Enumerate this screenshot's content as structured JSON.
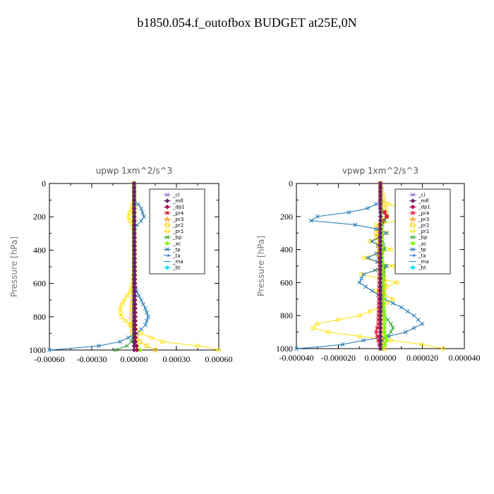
{
  "figure": {
    "title": "b1850.054.f_outofbox  BUDGET at25E,0N"
  },
  "legend_entries": [
    {
      "name": "_cl",
      "color": "#8b6fd6",
      "marker": "x"
    },
    {
      "name": "_mfl",
      "color": "#6b1f6b",
      "marker": "diamond"
    },
    {
      "name": "_dp1",
      "color": "#b0004a",
      "marker": "diamond"
    },
    {
      "name": "_pr4",
      "color": "#e0203c",
      "marker": "star"
    },
    {
      "name": "_pr3",
      "color": "#ff8a00",
      "marker": "triangle"
    },
    {
      "name": "_pr2",
      "color": "#ffcc00",
      "marker": "square"
    },
    {
      "name": "_pr1",
      "color": "#ffe000",
      "marker": "circle"
    },
    {
      "name": "_bp",
      "color": "#2ca02c",
      "marker": "x"
    },
    {
      "name": "_ac",
      "color": "#7cfc00",
      "marker": "diamond"
    },
    {
      "name": "_tp",
      "color": "#1f77b4",
      "marker": "x"
    },
    {
      "name": "_ta",
      "color": "#1f5fd6",
      "marker": "arrow"
    },
    {
      "name": "_ma",
      "color": "#17a2c8",
      "marker": "dash"
    },
    {
      "name": "_bt",
      "color": "#00e5ff",
      "marker": "diamond"
    }
  ],
  "chart_data": [
    {
      "type": "line",
      "title": "upwp   1xm^2/s^3",
      "ylabel": "Pressure [hPa]",
      "xlim": [
        -0.0006,
        0.0006
      ],
      "ylim": [
        1000,
        0
      ],
      "xticks": [
        -0.0006,
        -0.0003,
        0.0,
        0.0003,
        0.0006
      ],
      "xtick_labels": [
        "-0.00060",
        "-0.00030",
        "0.00000",
        "0.00030",
        "0.00060"
      ],
      "yticks": [
        0,
        200,
        400,
        600,
        800,
        1000
      ],
      "ytick_labels": [
        "0",
        "200",
        "400",
        "600",
        "800",
        "1000"
      ],
      "legend_position": "top-right",
      "series": [
        {
          "name": "_pr1",
          "color": "#ffe000",
          "p": [
            0,
            100,
            150,
            175,
            200,
            225,
            250,
            300,
            500,
            600,
            650,
            700,
            750,
            800,
            850,
            900,
            950,
            980,
            1000
          ],
          "values": [
            0,
            0,
            -2e-05,
            -3e-05,
            -4e-05,
            -3e-05,
            -1e-05,
            0,
            0,
            -1e-05,
            -3e-05,
            -7e-05,
            -0.0001,
            -9e-05,
            -3e-05,
            5e-05,
            0.0002,
            0.0005,
            0.0006
          ]
        },
        {
          "name": "_pr2",
          "color": "#ffcc00",
          "p": [
            0,
            600,
            700,
            800,
            900,
            950,
            980,
            1000
          ],
          "values": [
            0,
            0,
            -1e-05,
            -2e-05,
            -1e-05,
            4e-05,
            0.0001,
            0.00015
          ]
        },
        {
          "name": "_tp",
          "color": "#1f77b4",
          "p": [
            0,
            100,
            125,
            150,
            175,
            200,
            225,
            250,
            275,
            300,
            500,
            600,
            650,
            700,
            750,
            800,
            850,
            900,
            925,
            950,
            975,
            990,
            1000
          ],
          "values": [
            0,
            0,
            3e-05,
            5e-05,
            6e-05,
            7e-05,
            5e-05,
            2e-05,
            0,
            0,
            0,
            0,
            2e-05,
            5e-05,
            8e-05,
            0.0001,
            8e-05,
            2e-05,
            -4e-05,
            -0.0001,
            -0.00025,
            -0.00045,
            -0.0006
          ]
        },
        {
          "name": "_bp",
          "color": "#2ca02c",
          "p": [
            0,
            900,
            950,
            975,
            990,
            1000
          ],
          "values": [
            0,
            0,
            -2e-05,
            -5e-05,
            -0.0001,
            -0.00013
          ]
        },
        {
          "name": "_ac",
          "color": "#7cfc00",
          "p": [
            0,
            950,
            990,
            1000
          ],
          "values": [
            0,
            1e-05,
            3e-05,
            4e-05
          ]
        },
        {
          "name": "_dp1",
          "color": "#b0004a",
          "p": [
            0,
            950,
            990,
            1000
          ],
          "values": [
            0,
            1e-05,
            2e-05,
            2e-05
          ]
        },
        {
          "name": "_mfl",
          "color": "#6b1f6b",
          "p": [
            0,
            1000
          ],
          "values": [
            0,
            0
          ]
        }
      ]
    },
    {
      "type": "line",
      "title": "vpwp   1xm^2/s^3",
      "ylabel": "Pressure [hPa]",
      "xlim": [
        -4e-05,
        4e-05
      ],
      "ylim": [
        1000,
        0
      ],
      "xticks": [
        -4e-05,
        -2e-05,
        0.0,
        2e-05,
        4e-05
      ],
      "xtick_labels": [
        "-0.000040",
        "-0.000020",
        "0.000000",
        "0.000020",
        "0.000040"
      ],
      "yticks": [
        0,
        200,
        400,
        600,
        800,
        1000
      ],
      "ytick_labels": [
        "0",
        "200",
        "400",
        "600",
        "800",
        "1000"
      ],
      "legend_position": "top-right",
      "series": [
        {
          "name": "_pr1",
          "color": "#ffe000",
          "p": [
            0,
            100,
            130,
            160,
            190,
            220,
            250,
            300,
            350,
            400,
            450,
            500,
            550,
            600,
            650,
            700,
            750,
            800,
            850,
            875,
            900,
            925,
            950,
            975,
            1000
          ],
          "values": [
            0,
            0,
            5e-06,
            1.5e-05,
            2.5e-05,
            1e-05,
            -2e-06,
            3e-06,
            -5e-06,
            5e-06,
            -8e-06,
            6e-06,
            -9e-06,
            8e-06,
            -2e-06,
            6e-06,
            0,
            -1e-05,
            -3e-05,
            -3.2e-05,
            -2.5e-05,
            -1e-05,
            5e-06,
            2e-05,
            3e-05
          ]
        },
        {
          "name": "_pr2",
          "color": "#ffcc00",
          "p": [
            0,
            200,
            250,
            300,
            600,
            800,
            1000
          ],
          "values": [
            0,
            3e-06,
            0,
            -2e-06,
            2e-06,
            0,
            2e-06
          ]
        },
        {
          "name": "_tp",
          "color": "#1f77b4",
          "p": [
            0,
            100,
            125,
            150,
            175,
            200,
            225,
            250,
            275,
            300,
            350,
            400,
            450,
            500,
            550,
            600,
            650,
            700,
            750,
            800,
            850,
            900,
            925,
            950,
            975,
            990,
            1000
          ],
          "values": [
            0,
            0,
            -2e-06,
            -6e-06,
            -1.5e-05,
            -3e-05,
            -3.3e-05,
            -1.2e-05,
            -2e-06,
            3e-06,
            -4e-06,
            2e-06,
            -6e-06,
            3e-06,
            -8e-06,
            -1e-05,
            -4e-06,
            2e-06,
            1e-05,
            1.6e-05,
            2e-05,
            1.2e-05,
            4e-06,
            -8e-06,
            -1.8e-05,
            -3e-05,
            -4e-05
          ]
        },
        {
          "name": "_bp",
          "color": "#2ca02c",
          "p": [
            0,
            150,
            200,
            250,
            300,
            400,
            450,
            500,
            600,
            700,
            800,
            850,
            875,
            900,
            925,
            950,
            975,
            1000
          ],
          "values": [
            0,
            0,
            3e-06,
            1e-06,
            0,
            2e-06,
            -1e-06,
            2e-06,
            1e-06,
            0,
            2e-06,
            5e-06,
            6e-06,
            5e-06,
            3e-06,
            1e-06,
            0,
            0
          ]
        },
        {
          "name": "_dp1",
          "color": "#b0004a",
          "p": [
            0,
            150,
            175,
            200,
            225,
            250,
            300,
            1000
          ],
          "values": [
            0,
            0,
            2e-06,
            3e-06,
            1e-06,
            0,
            0,
            0
          ]
        },
        {
          "name": "_pr4",
          "color": "#e0203c",
          "p": [
            0,
            150,
            175,
            200,
            225,
            250,
            300,
            850,
            900,
            950,
            1000
          ],
          "values": [
            0,
            0,
            2e-06,
            3e-06,
            1e-06,
            0,
            0,
            -1e-06,
            -2e-06,
            -1e-06,
            0
          ]
        },
        {
          "name": "_ac",
          "color": "#7cfc00",
          "p": [
            0,
            900,
            950,
            1000
          ],
          "values": [
            0,
            2e-06,
            3e-06,
            1e-06
          ]
        },
        {
          "name": "_mfl",
          "color": "#6b1f6b",
          "p": [
            0,
            1000
          ],
          "values": [
            0,
            0
          ]
        }
      ]
    }
  ]
}
